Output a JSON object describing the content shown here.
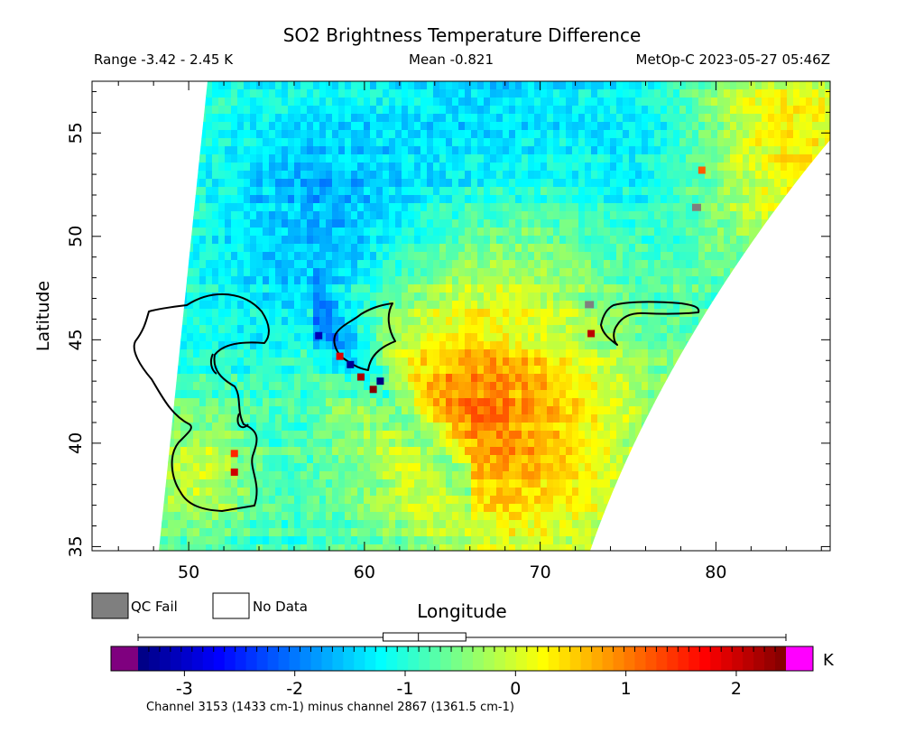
{
  "chart_data": {
    "type": "heatmap",
    "title": "SO2 Brightness Temperature Difference",
    "subtitle_range": "Range -3.42 - 2.45 K",
    "subtitle_mean": "Mean -0.821",
    "subtitle_source": "MetOp-C 2023-05-27 05:46Z",
    "xlabel": "Longitude",
    "ylabel": "Latitude",
    "xlim": [
      44.5,
      86.5
    ],
    "ylim": [
      34.8,
      57.5
    ],
    "x_ticks": [
      "50",
      "60",
      "70",
      "80"
    ],
    "x_tick_values": [
      50,
      60,
      70,
      80
    ],
    "y_ticks": [
      "35",
      "40",
      "45",
      "50",
      "55"
    ],
    "y_tick_values": [
      35,
      40,
      45,
      50,
      55
    ],
    "legend": {
      "qc_fail_label": "QC Fail",
      "qc_fail_color": "#7f7f7f",
      "no_data_label": "No Data",
      "no_data_color": "#ffffff"
    },
    "colorbar": {
      "range": [
        -3.42,
        2.45
      ],
      "ticks": [
        "-3",
        "-2",
        "-1",
        "0",
        "1",
        "2"
      ],
      "tick_values": [
        -3,
        -2,
        -1,
        0,
        1,
        2
      ],
      "unit": "K",
      "under_color": "#7f007f",
      "over_color": "#ff00ff",
      "colormap": "jet",
      "boxplot": {
        "min": -3.42,
        "q1": -1.2,
        "median": -0.88,
        "q3": -0.45,
        "max": 2.45
      }
    },
    "caption": "Channel 3153 (1433 cm-1) minus channel 2867 (1361.5 cm-1)",
    "anomalies": [
      {
        "lon": 59.8,
        "lat": 43.2,
        "value": 2.2
      },
      {
        "lon": 60.5,
        "lat": 42.6,
        "value": 2.4
      },
      {
        "lon": 58.6,
        "lat": 44.2,
        "value": 1.9
      },
      {
        "lon": 59.2,
        "lat": 43.8,
        "value": -3.3
      },
      {
        "lon": 60.9,
        "lat": 43.0,
        "value": -3.4
      },
      {
        "lon": 57.4,
        "lat": 45.2,
        "value": -3.1
      },
      {
        "lon": 72.9,
        "lat": 45.3,
        "value": 2.1
      },
      {
        "lon": 52.6,
        "lat": 38.6,
        "value": 2.0
      },
      {
        "lon": 52.6,
        "lat": 39.5,
        "value": 1.5
      },
      {
        "lon": 79.2,
        "lat": 53.2,
        "value": 1.2
      }
    ],
    "qc_fail_pixels": [
      {
        "lon": 72.8,
        "lat": 46.7
      },
      {
        "lon": 78.9,
        "lat": 51.4
      }
    ]
  }
}
